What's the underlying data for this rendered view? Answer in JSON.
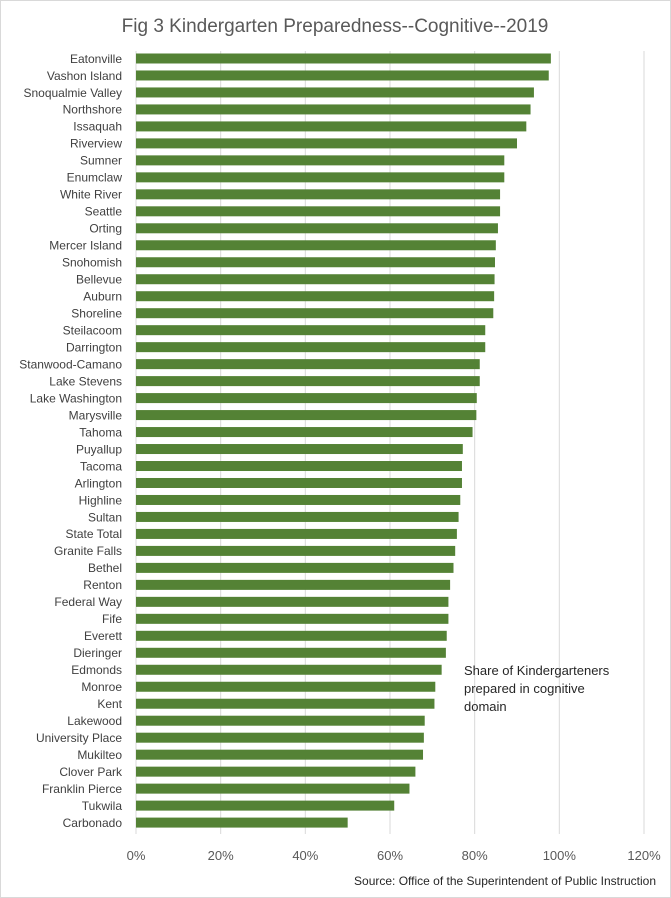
{
  "chart_data": {
    "type": "bar",
    "orientation": "horizontal",
    "title": "Fig 3 Kindergarten Preparedness--Cognitive--2019",
    "annotation": [
      "Share of Kindergarteners",
      "prepared  in cognitive",
      "domain"
    ],
    "source": "Source: Office of the Superintendent of Public Instruction",
    "bar_color": "#548235",
    "xlim": [
      0,
      120
    ],
    "x_ticks": [
      "0%",
      "20%",
      "40%",
      "60%",
      "80%",
      "100%",
      "120%"
    ],
    "grid": true,
    "legend": "none",
    "categories": [
      "Eatonville",
      "Vashon Island",
      "Snoqualmie Valley",
      "Northshore",
      "Issaquah",
      "Riverview",
      "Sumner",
      "Enumclaw",
      "White River",
      "Seattle",
      "Orting",
      "Mercer Island",
      "Snohomish",
      "Bellevue",
      "Auburn",
      "Shoreline",
      "Steilacoom",
      "Darrington",
      "Stanwood-Camano",
      "Lake Stevens",
      "Lake Washington",
      "Marysville",
      "Tahoma",
      "Puyallup",
      "Tacoma",
      "Arlington",
      "Highline",
      "Sultan",
      "State Total",
      "Granite Falls",
      "Bethel",
      "Renton",
      "Federal Way",
      "Fife",
      "Everett",
      "Dieringer",
      "Edmonds",
      "Monroe",
      "Kent",
      "Lakewood",
      "University Place",
      "Mukilteo",
      "Clover Park",
      "Franklin Pierce",
      "Tukwila",
      "Carbonado"
    ],
    "values": [
      98.0,
      97.5,
      94.0,
      93.2,
      92.2,
      90.0,
      87.0,
      87.0,
      86.0,
      86.0,
      85.5,
      85.0,
      84.8,
      84.7,
      84.6,
      84.4,
      82.5,
      82.5,
      81.2,
      81.2,
      80.5,
      80.4,
      79.5,
      77.2,
      77.0,
      77.0,
      76.6,
      76.2,
      75.8,
      75.4,
      75.0,
      74.2,
      73.8,
      73.8,
      73.4,
      73.2,
      72.2,
      70.7,
      70.5,
      68.2,
      68.0,
      67.8,
      66.0,
      64.6,
      61.0,
      50.0
    ]
  }
}
